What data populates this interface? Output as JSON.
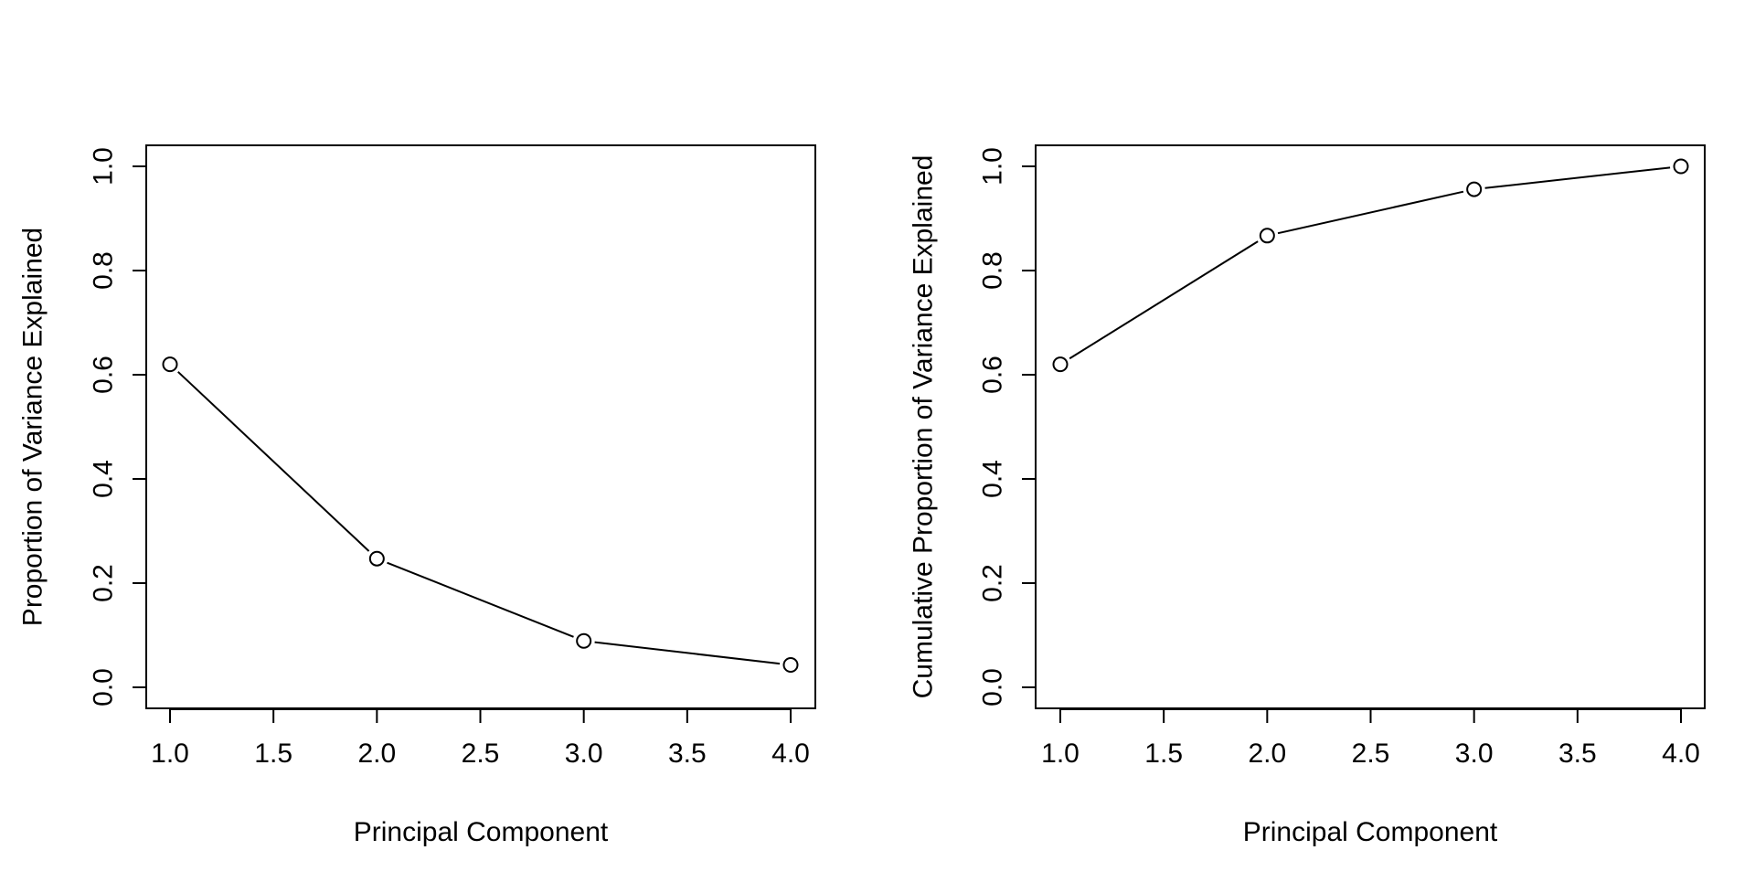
{
  "chart_data": [
    {
      "type": "line",
      "title": "",
      "xlabel": "Principal Component",
      "ylabel": "Proportion of Variance Explained",
      "xlim": [
        1.0,
        4.0
      ],
      "ylim": [
        0.0,
        1.0
      ],
      "x_ticks": [
        "1.0",
        "1.5",
        "2.0",
        "2.5",
        "3.0",
        "3.5",
        "4.0"
      ],
      "y_ticks": [
        "0.0",
        "0.2",
        "0.4",
        "0.6",
        "0.8",
        "1.0"
      ],
      "grid": false,
      "marker": "open-circle",
      "x": [
        1,
        2,
        3,
        4
      ],
      "values": [
        0.62,
        0.247,
        0.089,
        0.043
      ]
    },
    {
      "type": "line",
      "title": "",
      "xlabel": "Principal Component",
      "ylabel": "Cumulative Proportion of Variance Explained",
      "xlim": [
        1.0,
        4.0
      ],
      "ylim": [
        0.0,
        1.0
      ],
      "x_ticks": [
        "1.0",
        "1.5",
        "2.0",
        "2.5",
        "3.0",
        "3.5",
        "4.0"
      ],
      "y_ticks": [
        "0.0",
        "0.2",
        "0.4",
        "0.6",
        "0.8",
        "1.0"
      ],
      "grid": false,
      "marker": "open-circle",
      "x": [
        1,
        2,
        3,
        4
      ],
      "values": [
        0.62,
        0.867,
        0.956,
        1.0
      ]
    }
  ]
}
